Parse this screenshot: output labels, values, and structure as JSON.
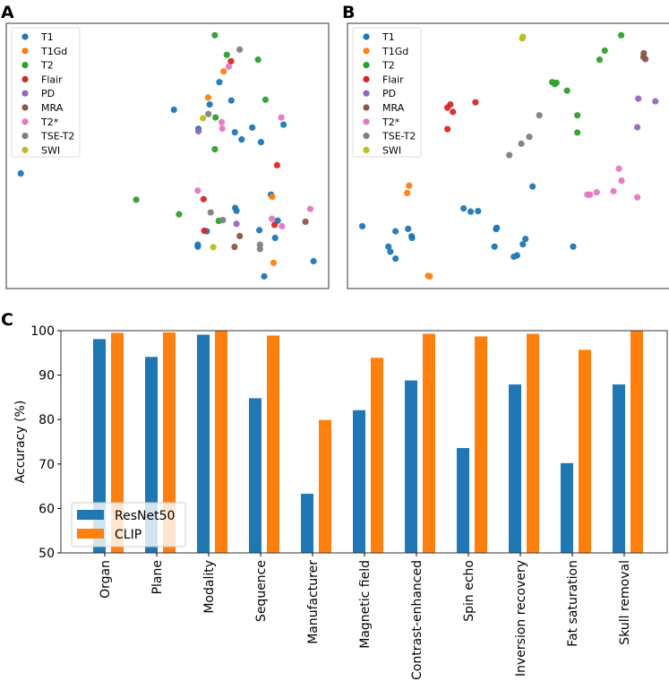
{
  "panels": {
    "a": "A",
    "b": "B",
    "c": "C"
  },
  "categories_legend": [
    "T1",
    "T1Gd",
    "T2",
    "Flair",
    "PD",
    "MRA",
    "T2*",
    "TSE-T2",
    "SWI"
  ],
  "colors": {
    "T1": "#1f77b4",
    "T1Gd": "#ff7f0e",
    "T2": "#2ca02c",
    "Flair": "#d62728",
    "PD": "#9467bd",
    "MRA": "#8c564b",
    "T2*": "#e377c2",
    "TSE-T2": "#7f7f7f",
    "SWI": "#bcbd22",
    "ResNet50": "#1f77b4",
    "CLIP": "#ff7f0e"
  },
  "chart_data": [
    {
      "type": "scatter",
      "title": "A",
      "xlim": [
        0,
        100
      ],
      "ylim": [
        0,
        100
      ],
      "legend": "top-left",
      "series": [
        {
          "name": "T1",
          "points": [
            [
              66.1,
              77.8
            ],
            [
              63.1,
              69.4
            ],
            [
              69.8,
              70.9
            ],
            [
              52.0,
              67.4
            ],
            [
              59.6,
              60.2
            ],
            [
              70.9,
              58.9
            ],
            [
              76.3,
              60.7
            ],
            [
              73.0,
              56.2
            ],
            [
              79.0,
              55.2
            ],
            [
              86.0,
              61.8
            ],
            [
              4.5,
              43.4
            ],
            [
              82.1,
              35.4
            ],
            [
              71.0,
              30.4
            ],
            [
              71.4,
              29.3
            ],
            [
              84.2,
              25.6
            ],
            [
              62.2,
              21.6
            ],
            [
              78.5,
              22.0
            ],
            [
              83.4,
              19.1
            ],
            [
              59.4,
              16.5
            ],
            [
              59.4,
              15.8
            ],
            [
              95.3,
              10.3
            ],
            [
              80.0,
              4.6
            ]
          ]
        },
        {
          "name": "T1Gd",
          "points": [
            [
              67.4,
              81.9
            ],
            [
              62.6,
              72.0
            ],
            [
              82.5,
              34.6
            ],
            [
              82.9,
              9.7
            ]
          ]
        },
        {
          "name": "T2",
          "points": [
            [
              64.7,
              95.5
            ],
            [
              68.4,
              88.1
            ],
            [
              78.1,
              86.3
            ],
            [
              80.4,
              71.2
            ],
            [
              64.9,
              64.5
            ],
            [
              64.7,
              52.5
            ],
            [
              40.3,
              33.5
            ],
            [
              53.6,
              28.0
            ],
            [
              65.9,
              25.5
            ]
          ]
        },
        {
          "name": "Flair",
          "points": [
            [
              69.7,
              85.7
            ],
            [
              84.0,
              46.5
            ],
            [
              61.2,
              33.7
            ],
            [
              61.4,
              21.8
            ],
            [
              83.2,
              24.0
            ]
          ]
        },
        {
          "name": "PD",
          "points": [
            [
              59.6,
              59.3
            ],
            [
              71.4,
              24.4
            ]
          ]
        },
        {
          "name": "MRA",
          "points": [
            [
              92.8,
              25.2
            ],
            [
              72.4,
              19.8
            ],
            [
              70.8,
              15.7
            ]
          ]
        },
        {
          "name": "T2*",
          "points": [
            [
              69.0,
              83.7
            ],
            [
              66.8,
              62.7
            ],
            [
              67.0,
              60.3
            ],
            [
              85.3,
              64.5
            ],
            [
              59.4,
              36.9
            ],
            [
              94.3,
              30.0
            ],
            [
              82.4,
              26.3
            ],
            [
              85.5,
              23.5
            ]
          ]
        },
        {
          "name": "TSE-T2",
          "points": [
            [
              72.4,
              90.1
            ],
            [
              62.7,
              65.8
            ],
            [
              63.4,
              28.7
            ],
            [
              67.2,
              25.8
            ],
            [
              78.7,
              16.5
            ],
            [
              78.7,
              14.9
            ]
          ]
        },
        {
          "name": "SWI",
          "points": [
            [
              61.0,
              64.2
            ],
            [
              64.2,
              15.6
            ]
          ]
        }
      ]
    },
    {
      "type": "scatter",
      "title": "B",
      "xlim": [
        0,
        100
      ],
      "ylim": [
        0,
        100
      ],
      "legend": "top-left",
      "series": [
        {
          "name": "T1",
          "points": [
            [
              4.6,
              23.5
            ],
            [
              14.9,
              21.6
            ],
            [
              18.8,
              22.5
            ],
            [
              19.9,
              19.7
            ],
            [
              20.0,
              19.1
            ],
            [
              12.7,
              15.8
            ],
            [
              13.3,
              13.9
            ],
            [
              14.9,
              11.3
            ],
            [
              36.0,
              30.2
            ],
            [
              38.2,
              29.0
            ],
            [
              40.5,
              29.2
            ],
            [
              46.3,
              22.9
            ],
            [
              46.1,
              22.4
            ],
            [
              45.6,
              15.8
            ],
            [
              57.4,
              38.5
            ],
            [
              55.2,
              18.7
            ],
            [
              54.4,
              16.7
            ],
            [
              52.6,
              12.5
            ],
            [
              51.6,
              12.0
            ],
            [
              70.0,
              15.8
            ]
          ]
        },
        {
          "name": "T1Gd",
          "points": [
            [
              19.1,
              38.8
            ],
            [
              18.5,
              36.0
            ],
            [
              25.0,
              4.8
            ],
            [
              25.5,
              4.6
            ]
          ]
        },
        {
          "name": "T2",
          "points": [
            [
              84.9,
              95.5
            ],
            [
              79.8,
              89.7
            ],
            [
              78.2,
              86.3
            ],
            [
              63.5,
              77.8
            ],
            [
              64.8,
              77.6
            ],
            [
              64.3,
              77.1
            ],
            [
              68.1,
              74.6
            ],
            [
              71.3,
              65.3
            ],
            [
              71.3,
              58.8
            ]
          ]
        },
        {
          "name": "Flair",
          "points": [
            [
              39.7,
              70.2
            ],
            [
              31.9,
              69.4
            ],
            [
              31.0,
              68.2
            ],
            [
              32.7,
              66.6
            ],
            [
              31.0,
              60.1
            ]
          ]
        },
        {
          "name": "PD",
          "points": [
            [
              90.2,
              71.6
            ],
            [
              95.5,
              70.6
            ],
            [
              89.9,
              60.8
            ]
          ]
        },
        {
          "name": "MRA",
          "points": [
            [
              91.9,
              88.7
            ],
            [
              91.8,
              87.3
            ],
            [
              92.4,
              86.5
            ]
          ]
        },
        {
          "name": "T2*",
          "points": [
            [
              84.2,
              45.2
            ],
            [
              85.0,
              40.7
            ],
            [
              82.5,
              36.7
            ],
            [
              77.3,
              36.3
            ],
            [
              75.2,
              35.4
            ],
            [
              74.4,
              35.4
            ],
            [
              89.9,
              34.4
            ]
          ]
        },
        {
          "name": "TSE-T2",
          "points": [
            [
              59.5,
              65.3
            ],
            [
              56.4,
              57.2
            ],
            [
              53.9,
              54.6
            ],
            [
              50.2,
              50.3
            ]
          ]
        },
        {
          "name": "SWI",
          "points": [
            [
              54.2,
              94.3
            ],
            [
              54.4,
              94.9
            ]
          ]
        }
      ]
    },
    {
      "type": "bar",
      "title": "C",
      "xlabel": "",
      "ylabel": "Accuracy (%)",
      "ylim": [
        50,
        100
      ],
      "yticks": [
        50,
        60,
        70,
        80,
        90,
        100
      ],
      "legend": "bottom-left",
      "categories": [
        "Organ",
        "Plane",
        "Modality",
        "Sequence",
        "Manufacturer",
        "Magnetic field",
        "Contrast-enhanced",
        "Spin echo",
        "Inversion recovery",
        "Fat saturation",
        "Skull removal"
      ],
      "series": [
        {
          "name": "ResNet50",
          "values": [
            98.1,
            94.1,
            99.1,
            84.8,
            63.3,
            82.1,
            88.8,
            73.6,
            87.9,
            70.2,
            87.9
          ]
        },
        {
          "name": "CLIP",
          "values": [
            99.5,
            99.6,
            100,
            98.9,
            79.9,
            93.9,
            99.3,
            98.7,
            99.3,
            95.7,
            100
          ]
        }
      ]
    }
  ]
}
